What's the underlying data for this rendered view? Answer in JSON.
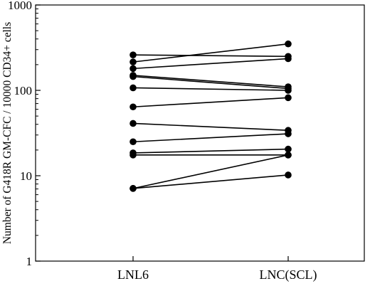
{
  "chart_data": {
    "type": "line",
    "title": "",
    "xlabel": "",
    "ylabel": "Number of G418R GM-CFC / 10000 CD34+ cells",
    "yscale": "log",
    "ylim": [
      1,
      1000
    ],
    "yticks": [
      1,
      10,
      100,
      1000
    ],
    "ytick_labels": [
      "1",
      "10",
      "100",
      "1000"
    ],
    "categories": [
      "LNL6",
      "LNC(SCL)"
    ],
    "grid": false,
    "legend": "none",
    "series": [
      {
        "values": [
          260,
          250
        ]
      },
      {
        "values": [
          215,
          350
        ]
      },
      {
        "values": [
          180,
          235
        ]
      },
      {
        "values": [
          150,
          110
        ]
      },
      {
        "values": [
          145,
          105
        ]
      },
      {
        "values": [
          107,
          100
        ]
      },
      {
        "values": [
          64,
          82
        ]
      },
      {
        "values": [
          41,
          34
        ]
      },
      {
        "values": [
          25,
          31
        ]
      },
      {
        "values": [
          18.5,
          20.5
        ]
      },
      {
        "values": [
          17.5,
          17.5
        ]
      },
      {
        "values": [
          7.1,
          17.5
        ]
      },
      {
        "values": [
          7.1,
          10.2
        ]
      }
    ],
    "colors": {
      "line": "#000000",
      "marker": "#000000"
    }
  }
}
